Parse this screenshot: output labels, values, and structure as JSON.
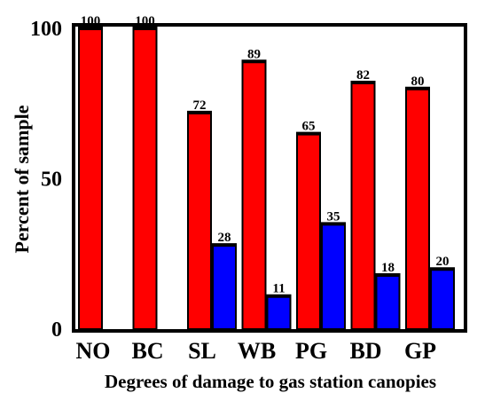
{
  "chart_data": {
    "type": "bar",
    "categories": [
      "NO",
      "BC",
      "SL",
      "WB",
      "PG",
      "BD",
      "GP"
    ],
    "series": [
      {
        "values": [
          100,
          100,
          72,
          89,
          65,
          82,
          80
        ],
        "color": "#ff0000"
      },
      {
        "values": [
          null,
          null,
          28,
          11,
          35,
          18,
          20
        ],
        "color": "#0000ff"
      }
    ],
    "xlabel": "Degrees of damage to gas station canopies",
    "ylabel": "Percent of sample",
    "yticks": [
      0,
      50,
      100
    ],
    "ylim": [
      0,
      100
    ],
    "grid": false,
    "legend": "none"
  }
}
